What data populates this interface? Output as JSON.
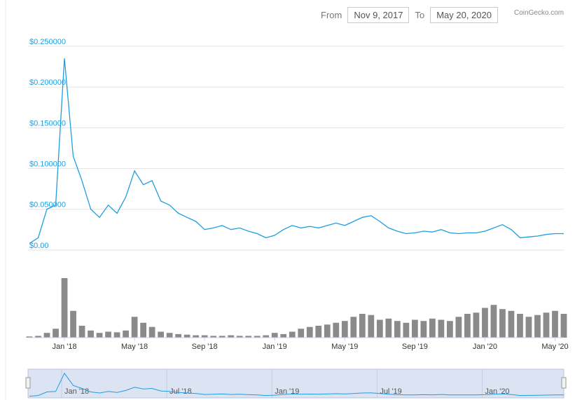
{
  "date_range": {
    "from_label": "From",
    "from": "Nov 9, 2017",
    "to_label": "To",
    "to": "May 20, 2020"
  },
  "credit": "CoinGecko.com",
  "chart_data": {
    "type": "line",
    "color": "#1f9ee0",
    "volume_color": "#8a8a8a",
    "categories": [
      null,
      null,
      null,
      null,
      "Jan '18",
      null,
      null,
      null,
      null,
      null,
      null,
      null,
      "May '18",
      null,
      null,
      null,
      null,
      null,
      null,
      null,
      "Sep '18",
      null,
      null,
      null,
      null,
      null,
      null,
      null,
      "Jan '19",
      null,
      null,
      null,
      null,
      null,
      null,
      null,
      "May '19",
      null,
      null,
      null,
      null,
      null,
      null,
      null,
      "Sep '19",
      null,
      null,
      null,
      null,
      null,
      null,
      null,
      "Jan '20",
      null,
      null,
      null,
      null,
      null,
      null,
      null,
      "May '20",
      null
    ],
    "values": [
      0.003,
      0.01,
      0.045,
      0.05,
      0.23,
      0.11,
      0.08,
      0.045,
      0.035,
      0.05,
      0.04,
      0.06,
      0.092,
      0.075,
      0.08,
      0.055,
      0.05,
      0.04,
      0.035,
      0.03,
      0.02,
      0.022,
      0.025,
      0.02,
      0.022,
      0.018,
      0.015,
      0.01,
      0.013,
      0.02,
      0.025,
      0.022,
      0.024,
      0.022,
      0.025,
      0.028,
      0.025,
      0.03,
      0.035,
      0.037,
      0.03,
      0.022,
      0.018,
      0.015,
      0.016,
      0.018,
      0.017,
      0.02,
      0.016,
      0.015,
      0.016,
      0.016,
      0.018,
      0.022,
      0.026,
      0.02,
      0.01,
      0.011,
      0.012,
      0.014,
      0.015,
      0.015
    ],
    "volumes": [
      2,
      3,
      8,
      15,
      100,
      45,
      20,
      12,
      8,
      10,
      9,
      12,
      35,
      25,
      18,
      10,
      8,
      6,
      5,
      4,
      4,
      3,
      3,
      4,
      3,
      3,
      3,
      4,
      8,
      6,
      10,
      15,
      18,
      20,
      22,
      25,
      28,
      35,
      40,
      38,
      30,
      32,
      28,
      25,
      30,
      28,
      32,
      30,
      28,
      35,
      40,
      42,
      50,
      55,
      48,
      45,
      40,
      35,
      38,
      42,
      45,
      40
    ],
    "ylim": [
      0,
      0.25
    ],
    "yticks": [
      {
        "value": 0,
        "label": "$0.00"
      },
      {
        "value": 0.05,
        "label": "$0.050000"
      },
      {
        "value": 0.1,
        "label": "$0.100000"
      },
      {
        "value": 0.15,
        "label": "$0.150000"
      },
      {
        "value": 0.2,
        "label": "$0.200000"
      },
      {
        "value": 0.25,
        "label": "$0.250000"
      }
    ],
    "grid": true,
    "navigator_labels": [
      null,
      null,
      null,
      null,
      "Jan '18",
      null,
      null,
      null,
      null,
      null,
      null,
      null,
      null,
      null,
      null,
      null,
      "Jul '18",
      null,
      null,
      null,
      null,
      null,
      null,
      null,
      null,
      null,
      null,
      null,
      "Jan '19",
      null,
      null,
      null,
      null,
      null,
      null,
      null,
      null,
      null,
      null,
      null,
      "Jul '19",
      null,
      null,
      null,
      null,
      null,
      null,
      null,
      null,
      null,
      null,
      null,
      "Jan '20",
      null,
      null,
      null,
      null,
      null,
      null,
      null,
      null,
      null
    ]
  }
}
